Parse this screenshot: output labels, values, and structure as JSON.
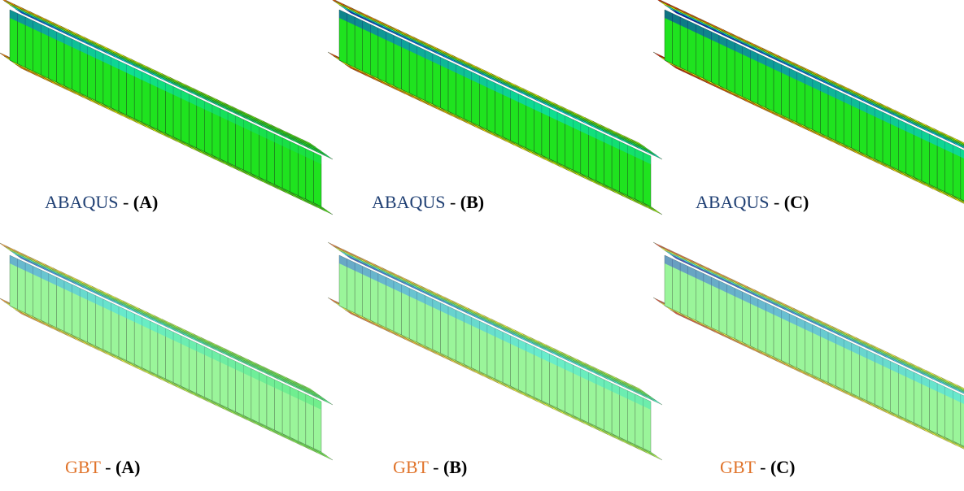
{
  "panels": [
    {
      "method": "ABAQUS",
      "sep": " - ",
      "case": "(A)",
      "kind": "abaqus",
      "variant": "A"
    },
    {
      "method": "ABAQUS",
      "sep": " - ",
      "case": "(B)",
      "kind": "abaqus",
      "variant": "B"
    },
    {
      "method": "ABAQUS",
      "sep": " - ",
      "case": "(C)",
      "kind": "abaqus",
      "variant": "C"
    },
    {
      "method": "GBT",
      "sep": " - ",
      "case": "(A)",
      "kind": "gbt",
      "variant": "A"
    },
    {
      "method": "GBT",
      "sep": " - ",
      "case": "(B)",
      "kind": "gbt",
      "variant": "B"
    },
    {
      "method": "GBT",
      "sep": " - ",
      "case": "(C)",
      "kind": "gbt",
      "variant": "C"
    }
  ],
  "colors": {
    "abaqus_label": "#1f3f73",
    "gbt_label": "#e0732a",
    "abaqus_base": "#1fe31f",
    "gbt_base": "#9af59a"
  }
}
